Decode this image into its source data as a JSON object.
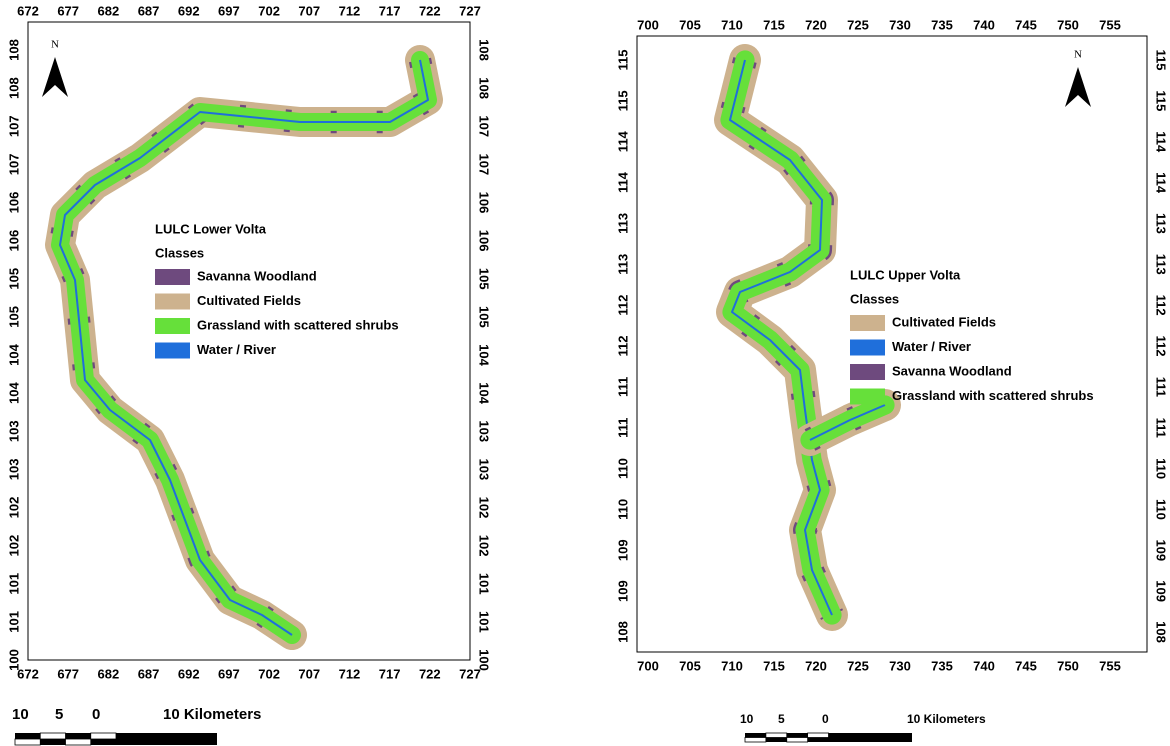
{
  "maps": [
    {
      "x_labels": [
        "672",
        "677",
        "682",
        "687",
        "692",
        "697",
        "702",
        "707",
        "712",
        "717",
        "722",
        "727"
      ],
      "y_labels": [
        "108",
        "108",
        "107",
        "107",
        "106",
        "106",
        "105",
        "105",
        "104",
        "104",
        "103",
        "103",
        "102",
        "102",
        "101",
        "101",
        "100"
      ],
      "north": "N",
      "legend": {
        "title": "LULC Lower Volta",
        "subtitle": "Classes",
        "items": [
          {
            "label": "Savanna Woodland",
            "color": "#6e4a7e"
          },
          {
            "label": "Cultivated Fields",
            "color": "#cdb28e"
          },
          {
            "label": "Grassland with scattered shrubs",
            "color": "#66e03a"
          },
          {
            "label": "Water / River",
            "color": "#1f6fdb"
          }
        ]
      },
      "scale": [
        "10",
        "5",
        "0",
        "10 Kilometers"
      ]
    },
    {
      "x_labels": [
        "700",
        "705",
        "710",
        "715",
        "720",
        "725",
        "730",
        "735",
        "740",
        "745",
        "750",
        "755"
      ],
      "y_labels": [
        "115",
        "115",
        "114",
        "114",
        "113",
        "113",
        "112",
        "112",
        "111",
        "111",
        "110",
        "110",
        "109",
        "109",
        "108"
      ],
      "north": "N",
      "legend": {
        "title": "LULC Upper Volta",
        "subtitle": "Classes",
        "items": [
          {
            "label": "Cultivated Fields",
            "color": "#cdb28e"
          },
          {
            "label": "Water / River",
            "color": "#1f6fdb"
          },
          {
            "label": "Savanna Woodland",
            "color": "#6e4a7e"
          },
          {
            "label": "Grassland with scattered shrubs",
            "color": "#66e03a"
          }
        ]
      },
      "scale": [
        "10",
        "5",
        "0",
        "10 Kilometers"
      ]
    }
  ]
}
